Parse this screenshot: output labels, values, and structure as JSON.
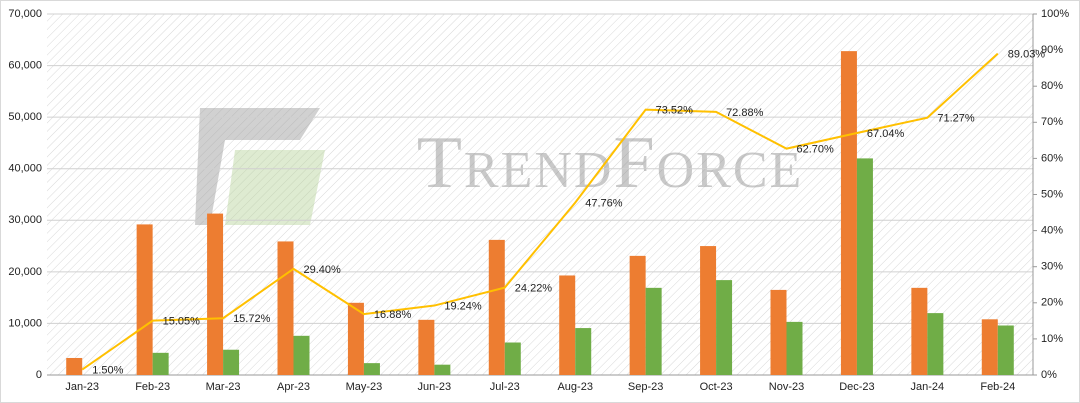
{
  "chart_data": {
    "type": "bar-line",
    "watermark": "TrendForce",
    "categories": [
      "Jan-23",
      "Feb-23",
      "Mar-23",
      "Apr-23",
      "May-23",
      "Jun-23",
      "Jul-23",
      "Aug-23",
      "Sep-23",
      "Oct-23",
      "Nov-23",
      "Dec-23",
      "Jan-24",
      "Feb-24"
    ],
    "series": [
      {
        "type": "bar",
        "color": "#ed7d31",
        "values": [
          3300,
          29200,
          31300,
          25900,
          14000,
          10700,
          26200,
          19300,
          23100,
          25000,
          16500,
          62800,
          16900,
          10800
        ]
      },
      {
        "type": "bar",
        "color": "#70ad47",
        "values": [
          0,
          4300,
          4900,
          7600,
          2300,
          2000,
          6300,
          9100,
          16900,
          18400,
          10300,
          42000,
          12000,
          9600
        ]
      },
      {
        "type": "line",
        "axis": "y2",
        "color": "#ffc000",
        "values": [
          1.5,
          15.05,
          15.72,
          29.4,
          16.88,
          19.24,
          24.22,
          47.76,
          73.52,
          72.88,
          62.7,
          67.04,
          71.27,
          89.03
        ],
        "value_labels": [
          "1.50%",
          "15.05%",
          "15.72%",
          "29.40%",
          "16.88%",
          "19.24%",
          "24.22%",
          "47.76%",
          "73.52%",
          "72.88%",
          "62.70%",
          "67.04%",
          "71.27%",
          "89.03%"
        ]
      }
    ],
    "ylim": [
      0,
      70000
    ],
    "yticks": [
      0,
      {
        "value": 10000,
        "label": "10,000"
      },
      {
        "value": 20000,
        "label": "20,000"
      },
      {
        "value": 30000,
        "label": "30,000"
      },
      {
        "value": 40000,
        "label": "40,000"
      },
      {
        "value": 50000,
        "label": "50,000"
      },
      {
        "value": 60000,
        "label": "60,000"
      },
      {
        "value": 70000,
        "label": "70,000"
      }
    ],
    "y2lim": [
      0,
      100
    ],
    "y2ticks": [
      {
        "value": 0,
        "label": "0%"
      },
      {
        "value": 10,
        "label": "10%"
      },
      {
        "value": 20,
        "label": "20%"
      },
      {
        "value": 30,
        "label": "30%"
      },
      {
        "value": 40,
        "label": "40%"
      },
      {
        "value": 50,
        "label": "50%"
      },
      {
        "value": 60,
        "label": "60%"
      },
      {
        "value": 70,
        "label": "70%"
      },
      {
        "value": 80,
        "label": "80%"
      },
      {
        "value": 90,
        "label": "90%"
      },
      {
        "value": 100,
        "label": "100%"
      }
    ],
    "grid": true
  }
}
